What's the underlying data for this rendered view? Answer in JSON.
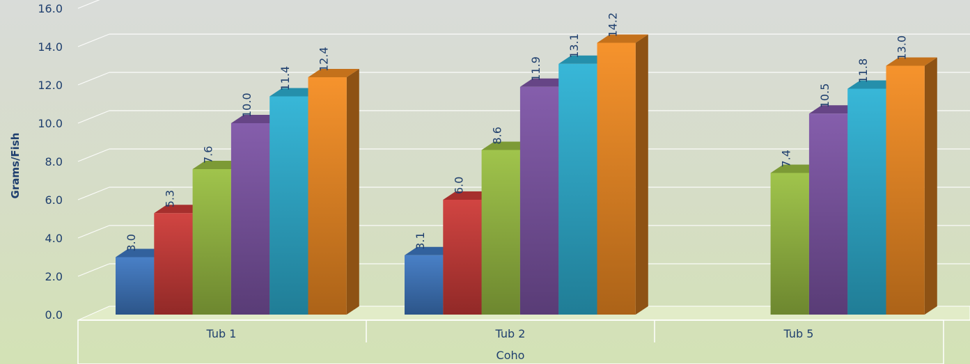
{
  "chart_data": {
    "type": "bar",
    "ylabel": "Grams/Fish",
    "y_ticks": [
      "0.0",
      "2.0",
      "4.0",
      "6.0",
      "8.0",
      "10.0",
      "12.0",
      "14.0",
      "16.0"
    ],
    "ylim": [
      0,
      16
    ],
    "categories": [
      "Tub 1",
      "Tub 2",
      "Tub 5"
    ],
    "group_label": "Coho",
    "series": [
      {
        "color": "#3f79c4",
        "values": [
          3.0,
          3.1,
          null
        ],
        "labels": [
          "3.0",
          "3.1",
          ""
        ]
      },
      {
        "color": "#cf3b38",
        "values": [
          5.3,
          6.0,
          null
        ],
        "labels": [
          "5.3",
          "6.0",
          ""
        ]
      },
      {
        "color": "#9bc143",
        "values": [
          7.6,
          8.6,
          7.4
        ],
        "labels": [
          "7.6",
          "8.6",
          "7.4"
        ]
      },
      {
        "color": "#7f56a8",
        "values": [
          10.0,
          11.9,
          10.5
        ],
        "labels": [
          "10.0",
          "11.9",
          "10.5"
        ]
      },
      {
        "color": "#2eb3d6",
        "values": [
          11.4,
          13.1,
          11.8
        ],
        "labels": [
          "11.4",
          "13.1",
          "11.8"
        ]
      },
      {
        "color": "#f58d22",
        "values": [
          12.4,
          14.2,
          13.0
        ],
        "labels": [
          "12.4",
          "14.2",
          "13.0"
        ]
      }
    ],
    "grid": true,
    "legend": "none"
  }
}
